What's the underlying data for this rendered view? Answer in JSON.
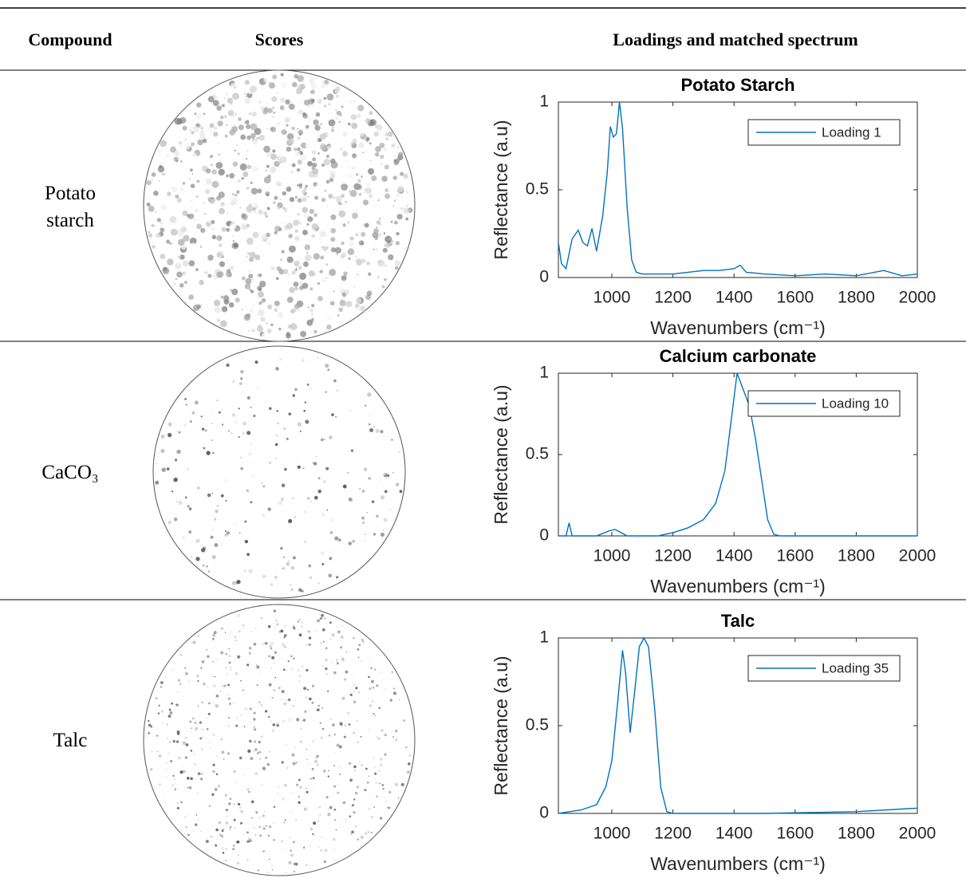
{
  "table": {
    "headers": [
      "Compound",
      "Scores",
      "Loadings and matched spectrum"
    ],
    "rows": [
      {
        "compound": "Potato starch"
      },
      {
        "compound": "CaCO₃"
      },
      {
        "compound": "Talc"
      }
    ]
  },
  "chart_data": [
    {
      "type": "line",
      "title": "Potato Starch",
      "xlabel": "Wavenumbers (cm⁻¹)",
      "ylabel": "Reflectance (a.u)",
      "x": [
        825,
        835,
        850,
        870,
        890,
        905,
        920,
        935,
        950,
        970,
        985,
        995,
        1005,
        1015,
        1025,
        1035,
        1050,
        1065,
        1080,
        1100,
        1150,
        1200,
        1250,
        1300,
        1350,
        1400,
        1420,
        1440,
        1500,
        1600,
        1700,
        1800,
        1890,
        1950,
        2000
      ],
      "series": [
        {
          "name": "Loading 1",
          "color": "#0072bd",
          "values": [
            0.2,
            0.08,
            0.05,
            0.22,
            0.27,
            0.2,
            0.18,
            0.28,
            0.15,
            0.35,
            0.6,
            0.86,
            0.8,
            0.82,
            1.0,
            0.85,
            0.4,
            0.1,
            0.03,
            0.02,
            0.02,
            0.02,
            0.03,
            0.04,
            0.04,
            0.05,
            0.07,
            0.03,
            0.02,
            0.01,
            0.02,
            0.01,
            0.04,
            0.01,
            0.02
          ]
        }
      ],
      "xlim": [
        825,
        2000
      ],
      "ylim": [
        0,
        1
      ],
      "xticks": [
        1000,
        1200,
        1400,
        1600,
        1800,
        2000
      ],
      "yticks": [
        0,
        0.5,
        1
      ],
      "legend": "upper right"
    },
    {
      "type": "line",
      "title": "Calcium carbonate",
      "xlabel": "Wavenumbers (cm⁻¹)",
      "ylabel": "Reflectance (a.u)",
      "x": [
        825,
        850,
        860,
        870,
        950,
        990,
        1010,
        1030,
        1050,
        1150,
        1200,
        1250,
        1300,
        1340,
        1370,
        1390,
        1410,
        1430,
        1450,
        1470,
        1490,
        1510,
        1530,
        1550,
        2000
      ],
      "series": [
        {
          "name": "Loading 10",
          "color": "#0072bd",
          "values": [
            0,
            0,
            0.08,
            0,
            0,
            0.03,
            0.04,
            0.02,
            0,
            0,
            0.02,
            0.05,
            0.1,
            0.2,
            0.4,
            0.7,
            1.0,
            0.9,
            0.8,
            0.6,
            0.35,
            0.1,
            0.01,
            0,
            0
          ]
        }
      ],
      "xlim": [
        825,
        2000
      ],
      "ylim": [
        0,
        1
      ],
      "xticks": [
        1000,
        1200,
        1400,
        1600,
        1800,
        2000
      ],
      "yticks": [
        0,
        0.5,
        1
      ],
      "legend": "upper right"
    },
    {
      "type": "line",
      "title": "Talc",
      "xlabel": "Wavenumbers (cm⁻¹)",
      "ylabel": "Reflectance (a.u)",
      "x": [
        825,
        900,
        950,
        980,
        1000,
        1020,
        1035,
        1045,
        1060,
        1075,
        1090,
        1105,
        1120,
        1140,
        1160,
        1180,
        1200,
        1500,
        1800,
        2000
      ],
      "series": [
        {
          "name": "Loading 35",
          "color": "#0072bd",
          "values": [
            0,
            0.02,
            0.05,
            0.15,
            0.3,
            0.65,
            0.93,
            0.8,
            0.46,
            0.7,
            0.95,
            1.0,
            0.95,
            0.6,
            0.15,
            0.01,
            0,
            0,
            0.01,
            0.03
          ]
        }
      ],
      "xlim": [
        825,
        2000
      ],
      "ylim": [
        0,
        1
      ],
      "xticks": [
        1000,
        1200,
        1400,
        1600,
        1800,
        2000
      ],
      "yticks": [
        0,
        0.5,
        1
      ],
      "legend": "upper right"
    }
  ]
}
